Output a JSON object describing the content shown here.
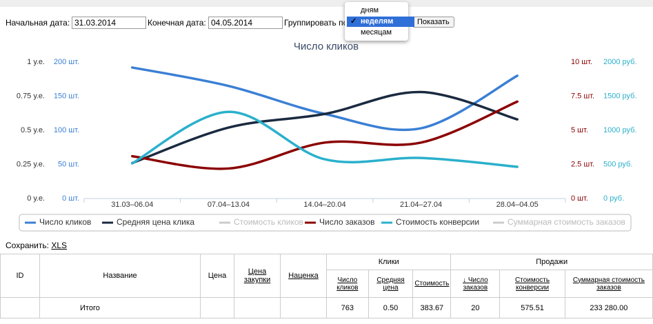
{
  "filters": {
    "start_label": "Начальная дата:",
    "start_value": "31.03.2014",
    "end_label": "Конечная дата:",
    "end_value": "04.05.2014",
    "group_label": "Группировать по",
    "group_options": [
      "дням",
      "неделям",
      "месяцам"
    ],
    "group_selected": 1,
    "button": "Показать"
  },
  "chart": {
    "type": "line",
    "title": "Число кликов",
    "categories": [
      "31.03–06.04",
      "07.04–13.04",
      "14.04–20.04",
      "21.04–27.04",
      "28.04–04.05"
    ],
    "axes": [
      {
        "side": "left",
        "color": "#333333",
        "lim": [
          0,
          1
        ],
        "ticks": [
          {
            "value": 0,
            "label": "0 у.е."
          },
          {
            "value": 0.25,
            "label": "0.25 у.е."
          },
          {
            "value": 0.5,
            "label": "0.5 у.е."
          },
          {
            "value": 0.75,
            "label": "0.75 у.е."
          },
          {
            "value": 1,
            "label": "1 у.е."
          }
        ]
      },
      {
        "side": "left",
        "color": "#3a7fd5",
        "lim": [
          0,
          200
        ],
        "ticks": [
          {
            "value": 0,
            "label": "0 шт."
          },
          {
            "value": 50,
            "label": "50 шт."
          },
          {
            "value": 100,
            "label": "100 шт."
          },
          {
            "value": 150,
            "label": "150 шт."
          },
          {
            "value": 200,
            "label": "200 шт."
          }
        ]
      },
      {
        "side": "right",
        "color": "#8b0000",
        "lim": [
          0,
          10
        ],
        "ticks": [
          {
            "value": 0,
            "label": "0 шт."
          },
          {
            "value": 2.5,
            "label": "2.5 шт."
          },
          {
            "value": 5,
            "label": "5 шт."
          },
          {
            "value": 7.5,
            "label": "7.5 шт."
          },
          {
            "value": 10,
            "label": "10 шт."
          }
        ]
      },
      {
        "side": "right",
        "color": "#2ab0cc",
        "lim": [
          0,
          2000
        ],
        "ticks": [
          {
            "value": 0,
            "label": "0 руб."
          },
          {
            "value": 500,
            "label": "500 руб."
          },
          {
            "value": 1000,
            "label": "1000 руб."
          },
          {
            "value": 1500,
            "label": "1500 руб."
          },
          {
            "value": 2000,
            "label": "2000 руб."
          }
        ]
      }
    ],
    "series": [
      {
        "name": "Число кликов",
        "color": "#3a7fd5",
        "axis": 1,
        "values": [
          192,
          165,
          124,
          103,
          180
        ]
      },
      {
        "name": "Средняя цена клика",
        "color": "#1a2a40",
        "axis": 0,
        "values": [
          0.26,
          0.52,
          0.62,
          0.78,
          0.58
        ]
      },
      {
        "name": "Стоимость кликов",
        "color": "#cccccc",
        "hidden": true
      },
      {
        "name": "Число заказов",
        "color": "#8b0000",
        "axis": 2,
        "values": [
          3.1,
          2.2,
          4.1,
          4.1,
          7.1
        ]
      },
      {
        "name": "Стоимость конверсии",
        "color": "#2ab0cc",
        "axis": 3,
        "values": [
          515,
          1270,
          575,
          595,
          465
        ]
      },
      {
        "name": "Суммарная стоимость заказов",
        "color": "#cccccc",
        "hidden": true
      }
    ]
  },
  "save": {
    "label": "Сохранить:",
    "link": "XLS"
  },
  "table": {
    "columns": [
      "ID",
      "Название",
      "Цена",
      "Цена закупки",
      "Наценка"
    ],
    "groups": [
      {
        "title": "Клики",
        "columns": [
          "Число кликов",
          "Средняя цена",
          "Стоимость"
        ]
      },
      {
        "title": "Продажи",
        "columns": [
          "↓ Число заказов",
          "Стоимость конверсии",
          "Суммарная стоимость заказов"
        ]
      }
    ],
    "total": {
      "label": "Итого",
      "values": [
        "763",
        "0.50",
        "383.67",
        "20",
        "575.51",
        "233 280.00"
      ]
    }
  }
}
